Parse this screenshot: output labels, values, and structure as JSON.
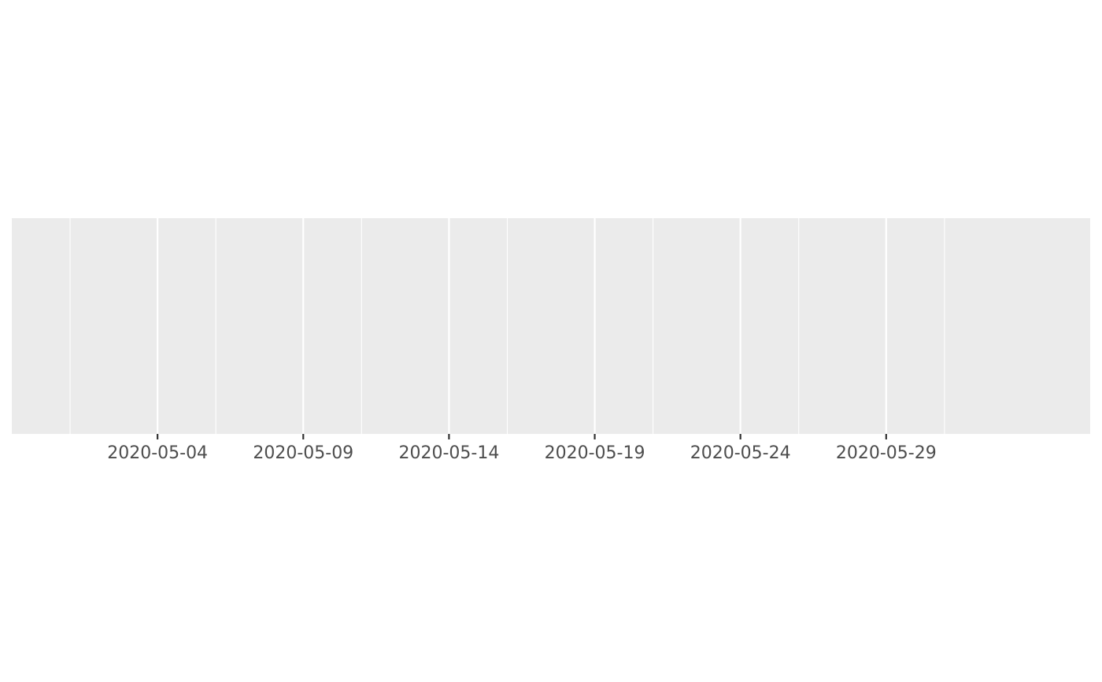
{
  "chart_data": {
    "type": "scatter",
    "title": "",
    "xlabel": "",
    "ylabel": "",
    "x_axis": {
      "scale": "date",
      "range": [
        "2020-04-29",
        "2020-06-05"
      ],
      "major_ticks": [
        "2020-05-04",
        "2020-05-09",
        "2020-05-14",
        "2020-05-19",
        "2020-05-24",
        "2020-05-29"
      ],
      "minor_ticks": [
        "2020-05-01",
        "2020-05-06",
        "2020-05-11",
        "2020-05-16",
        "2020-05-21",
        "2020-05-26",
        "2020-05-31"
      ]
    },
    "y_axis": {
      "visible": false
    },
    "series": [],
    "grid": true,
    "legend": "none",
    "colors": {
      "panel_background": "#EBEBEB",
      "gridline": "#FFFFFF",
      "tick_mark": "#333333",
      "tick_label": "#4D4D4D"
    }
  }
}
